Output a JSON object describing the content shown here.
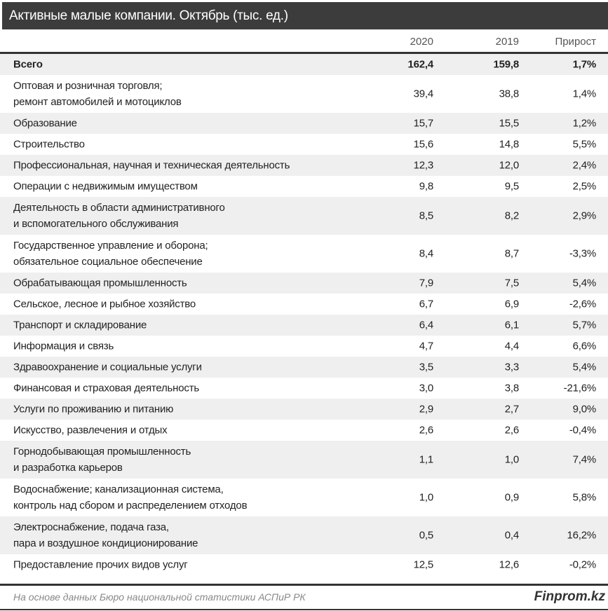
{
  "title": "Активные малые компании. Октябрь (тыс. ед.)",
  "columns": [
    "2020",
    "2019",
    "Прирост"
  ],
  "rows": [
    {
      "name": "Всего",
      "v2020": "162,4",
      "v2019": "159,8",
      "growth": "1,7%",
      "bold": true
    },
    {
      "name": "Оптовая и розничная торговля;\nремонт автомобилей и мотоциклов",
      "v2020": "39,4",
      "v2019": "38,8",
      "growth": "1,4%"
    },
    {
      "name": "Образование",
      "v2020": "15,7",
      "v2019": "15,5",
      "growth": "1,2%"
    },
    {
      "name": "Строительство",
      "v2020": "15,6",
      "v2019": "14,8",
      "growth": "5,5%"
    },
    {
      "name": "Профессиональная, научная и техническая деятельность",
      "v2020": "12,3",
      "v2019": "12,0",
      "growth": "2,4%"
    },
    {
      "name": "Операции с недвижимым имуществом",
      "v2020": "9,8",
      "v2019": "9,5",
      "growth": "2,5%"
    },
    {
      "name": "Деятельность в области административного\nи вспомогательного обслуживания",
      "v2020": "8,5",
      "v2019": "8,2",
      "growth": "2,9%"
    },
    {
      "name": "Государственное управление и оборона;\nобязательное социальное обеспечение",
      "v2020": "8,4",
      "v2019": "8,7",
      "growth": "-3,3%"
    },
    {
      "name": "Обрабатывающая промышленность",
      "v2020": "7,9",
      "v2019": "7,5",
      "growth": "5,4%"
    },
    {
      "name": "Сельское, лесное и рыбное хозяйство",
      "v2020": "6,7",
      "v2019": "6,9",
      "growth": "-2,6%"
    },
    {
      "name": "Транспорт и складирование",
      "v2020": "6,4",
      "v2019": "6,1",
      "growth": "5,7%"
    },
    {
      "name": "Информация и связь",
      "v2020": "4,7",
      "v2019": "4,4",
      "growth": "6,6%"
    },
    {
      "name": "Здравоохранение и социальные услуги",
      "v2020": "3,5",
      "v2019": "3,3",
      "growth": "5,4%"
    },
    {
      "name": "Финансовая и страховая деятельность",
      "v2020": "3,0",
      "v2019": "3,8",
      "growth": "-21,6%"
    },
    {
      "name": "Услуги по проживанию и питанию",
      "v2020": "2,9",
      "v2019": "2,7",
      "growth": "9,0%"
    },
    {
      "name": "Искусство, развлечения и отдых",
      "v2020": "2,6",
      "v2019": "2,6",
      "growth": "-0,4%"
    },
    {
      "name": "Горнодобывающая промышленность\nи разработка карьеров",
      "v2020": "1,1",
      "v2019": "1,0",
      "growth": "7,4%"
    },
    {
      "name": "Водоснабжение; канализационная система,\nконтроль над сбором и распределением отходов",
      "v2020": "1,0",
      "v2019": "0,9",
      "growth": "5,8%"
    },
    {
      "name": "Электроснабжение, подача газа,\nпара и воздушное кондиционирование",
      "v2020": "0,5",
      "v2019": "0,4",
      "growth": "16,2%"
    },
    {
      "name": "Предоставление прочих видов услуг",
      "v2020": "12,5",
      "v2019": "12,6",
      "growth": "-0,2%"
    }
  ],
  "footer": {
    "source": "На основе данных Бюро национальной статистики АСПиР РК",
    "brand": "Finprom.kz"
  },
  "colors": {
    "title_bg": "#3c3c3c",
    "row_shade": "#efefef"
  },
  "chart_data": {
    "type": "table",
    "title": "Активные малые компании. Октябрь (тыс. ед.)",
    "columns": [
      "",
      "2020",
      "2019",
      "Прирост"
    ]
  }
}
